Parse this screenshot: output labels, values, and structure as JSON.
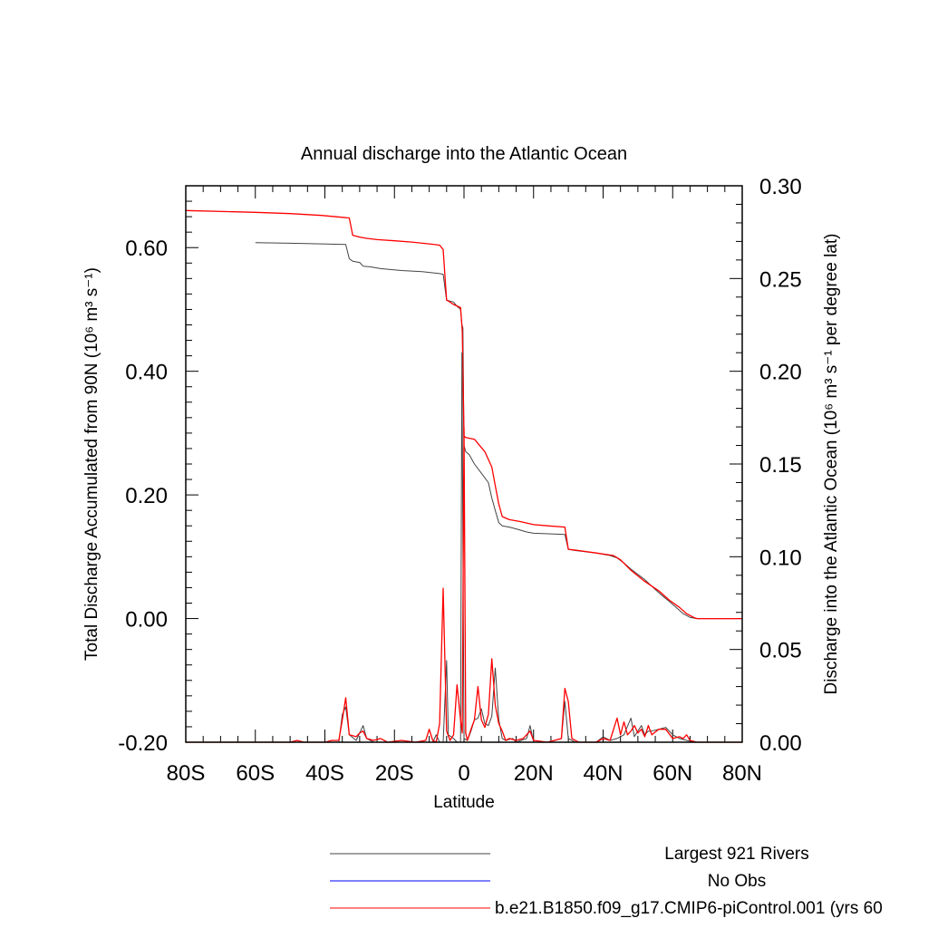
{
  "chart_data": {
    "type": "line",
    "title": "Annual discharge into the Atlantic Ocean",
    "xlabel": "Latitude",
    "ylabel_left": "Total Discharge Accumulated from 90N (10⁶ m³ s⁻¹)",
    "ylabel_right": "Discharge into the Atlantic Ocean (10⁶ m³ s⁻¹ per degree lat)",
    "xlim": [
      -80,
      80
    ],
    "ylim_left": [
      -0.2,
      0.7
    ],
    "ylim_right": [
      0.0,
      0.3
    ],
    "x_ticks": [
      {
        "value": -80,
        "label": "80S"
      },
      {
        "value": -60,
        "label": "60S"
      },
      {
        "value": -40,
        "label": "40S"
      },
      {
        "value": -20,
        "label": "20S"
      },
      {
        "value": 0,
        "label": "0"
      },
      {
        "value": 20,
        "label": "20N"
      },
      {
        "value": 40,
        "label": "40N"
      },
      {
        "value": 60,
        "label": "60N"
      },
      {
        "value": 80,
        "label": "80N"
      }
    ],
    "y_ticks_left": [
      {
        "value": -0.2,
        "label": "-0.20"
      },
      {
        "value": 0.0,
        "label": "0.00"
      },
      {
        "value": 0.2,
        "label": "0.20"
      },
      {
        "value": 0.4,
        "label": "0.40"
      },
      {
        "value": 0.6,
        "label": "0.60"
      }
    ],
    "y_ticks_right": [
      {
        "value": 0.0,
        "label": "0.00"
      },
      {
        "value": 0.05,
        "label": "0.05"
      },
      {
        "value": 0.1,
        "label": "0.10"
      },
      {
        "value": 0.15,
        "label": "0.15"
      },
      {
        "value": 0.2,
        "label": "0.20"
      },
      {
        "value": 0.25,
        "label": "0.25"
      },
      {
        "value": 0.3,
        "label": "0.30"
      }
    ],
    "series": [
      {
        "name": "Largest 921 Rivers",
        "color": "#444444",
        "axis": "left",
        "points": [
          [
            -60,
            0.608
          ],
          [
            -50,
            0.607
          ],
          [
            -41,
            0.606
          ],
          [
            -34,
            0.605
          ],
          [
            -33,
            0.582
          ],
          [
            -32,
            0.578
          ],
          [
            -30,
            0.576
          ],
          [
            -29,
            0.57
          ],
          [
            -27,
            0.569
          ],
          [
            -24,
            0.566
          ],
          [
            -18,
            0.563
          ],
          [
            -12,
            0.561
          ],
          [
            -7,
            0.558
          ],
          [
            -6,
            0.557
          ],
          [
            -5,
            0.515
          ],
          [
            -3,
            0.512
          ],
          [
            -2,
            0.505
          ],
          [
            -1,
            0.5
          ],
          [
            -0.6,
            0.475
          ],
          [
            -0.3,
            0.47
          ],
          [
            0,
            0.28
          ],
          [
            0.5,
            0.27
          ],
          [
            1.5,
            0.265
          ],
          [
            3,
            0.25
          ],
          [
            5,
            0.235
          ],
          [
            7,
            0.22
          ],
          [
            8,
            0.195
          ],
          [
            9,
            0.175
          ],
          [
            10,
            0.155
          ],
          [
            11,
            0.15
          ],
          [
            13,
            0.148
          ],
          [
            15,
            0.145
          ],
          [
            18,
            0.14
          ],
          [
            20,
            0.138
          ],
          [
            25,
            0.137
          ],
          [
            29,
            0.136
          ],
          [
            30,
            0.112
          ],
          [
            32,
            0.11
          ],
          [
            38,
            0.106
          ],
          [
            42,
            0.102
          ],
          [
            44,
            0.098
          ],
          [
            46,
            0.09
          ],
          [
            48,
            0.08
          ],
          [
            52,
            0.063
          ],
          [
            55,
            0.047
          ],
          [
            57,
            0.037
          ],
          [
            59,
            0.028
          ],
          [
            61,
            0.018
          ],
          [
            63,
            0.008
          ],
          [
            65,
            0.002
          ],
          [
            67,
            0.0
          ],
          [
            80,
            0.0
          ]
        ]
      },
      {
        "name": "No Obs",
        "color": "#0000ff",
        "axis": "left",
        "points": []
      },
      {
        "name": "b.e21.B1850.f09_g17.CMIP6-piControl.001 (yrs 60",
        "color": "#ff0000",
        "axis": "left",
        "points": [
          [
            -80,
            0.66
          ],
          [
            -60,
            0.657
          ],
          [
            -50,
            0.655
          ],
          [
            -41,
            0.652
          ],
          [
            -33,
            0.648
          ],
          [
            -32,
            0.62
          ],
          [
            -30,
            0.617
          ],
          [
            -28,
            0.615
          ],
          [
            -25,
            0.613
          ],
          [
            -20,
            0.611
          ],
          [
            -15,
            0.609
          ],
          [
            -10,
            0.606
          ],
          [
            -7,
            0.604
          ],
          [
            -6,
            0.597
          ],
          [
            -5,
            0.515
          ],
          [
            -4,
            0.512
          ],
          [
            -3,
            0.508
          ],
          [
            -1,
            0.503
          ],
          [
            -0.5,
            0.465
          ],
          [
            0,
            0.295
          ],
          [
            0.5,
            0.293
          ],
          [
            3,
            0.29
          ],
          [
            6,
            0.27
          ],
          [
            8,
            0.245
          ],
          [
            9,
            0.215
          ],
          [
            10,
            0.185
          ],
          [
            11,
            0.165
          ],
          [
            13,
            0.16
          ],
          [
            16,
            0.157
          ],
          [
            20,
            0.152
          ],
          [
            24,
            0.15
          ],
          [
            29,
            0.148
          ],
          [
            30,
            0.112
          ],
          [
            33,
            0.11
          ],
          [
            38,
            0.106
          ],
          [
            43,
            0.102
          ],
          [
            45,
            0.095
          ],
          [
            48,
            0.078
          ],
          [
            52,
            0.06
          ],
          [
            56,
            0.045
          ],
          [
            59,
            0.03
          ],
          [
            62,
            0.018
          ],
          [
            64,
            0.008
          ],
          [
            66,
            0.002
          ],
          [
            67,
            0.0
          ],
          [
            80,
            0.0
          ]
        ]
      },
      {
        "name": "Largest 921 Rivers (per degree lat)",
        "color": "#444444",
        "axis": "right",
        "points": [
          [
            -80,
            0.0
          ],
          [
            -36,
            0.0
          ],
          [
            -35,
            0.015
          ],
          [
            -34,
            0.019
          ],
          [
            -33,
            0.004
          ],
          [
            -31,
            0.001
          ],
          [
            -29,
            0.009
          ],
          [
            -28,
            0.002
          ],
          [
            -26,
            0.0
          ],
          [
            -9,
            0.0
          ],
          [
            -8,
            0.004
          ],
          [
            -7,
            0.0
          ],
          [
            -6,
            0.0
          ],
          [
            -5,
            0.044
          ],
          [
            -4.5,
            0.004
          ],
          [
            -3,
            0.002
          ],
          [
            -2,
            0.0
          ],
          [
            -1,
            0.0
          ],
          [
            -0.6,
            0.21
          ],
          [
            0,
            0.002
          ],
          [
            1,
            0.001
          ],
          [
            2,
            0.006
          ],
          [
            3,
            0.012
          ],
          [
            4,
            0.013
          ],
          [
            5,
            0.018
          ],
          [
            6,
            0.01
          ],
          [
            7,
            0.009
          ],
          [
            8,
            0.014
          ],
          [
            9,
            0.04
          ],
          [
            10,
            0.012
          ],
          [
            11,
            0.002
          ],
          [
            12,
            0.001
          ],
          [
            14,
            0.002
          ],
          [
            15,
            0.0
          ],
          [
            18,
            0.002
          ],
          [
            19,
            0.009
          ],
          [
            20,
            0.0
          ],
          [
            24,
            0.0
          ],
          [
            26,
            0.001
          ],
          [
            28,
            0.002
          ],
          [
            29,
            0.022
          ],
          [
            30,
            0.002
          ],
          [
            32,
            0.0
          ],
          [
            38,
            0.0
          ],
          [
            40,
            0.003
          ],
          [
            42,
            0.001
          ],
          [
            44,
            0.002
          ],
          [
            46,
            0.004
          ],
          [
            48,
            0.013
          ],
          [
            49,
            0.003
          ],
          [
            50,
            0.006
          ],
          [
            51,
            0.009
          ],
          [
            52,
            0.004
          ],
          [
            53,
            0.006
          ],
          [
            54,
            0.006
          ],
          [
            56,
            0.007
          ],
          [
            58,
            0.008
          ],
          [
            60,
            0.004
          ],
          [
            62,
            0.002
          ],
          [
            64,
            0.001
          ],
          [
            66,
            0.0
          ],
          [
            80,
            0.0
          ]
        ]
      },
      {
        "name": "b.e21.B1850.f09_g17.CMIP6-piControl.001 (per degree lat)",
        "color": "#ff0000",
        "axis": "right",
        "points": [
          [
            -80,
            0.0
          ],
          [
            -50,
            0.0
          ],
          [
            -48,
            0.001
          ],
          [
            -46,
            0.0
          ],
          [
            -40,
            0.0
          ],
          [
            -38,
            0.001
          ],
          [
            -36,
            0.001
          ],
          [
            -35,
            0.012
          ],
          [
            -34,
            0.024
          ],
          [
            -33,
            0.004
          ],
          [
            -31,
            0.003
          ],
          [
            -30,
            0.005
          ],
          [
            -29,
            0.006
          ],
          [
            -28,
            0.002
          ],
          [
            -26,
            0.001
          ],
          [
            -24,
            0.002
          ],
          [
            -22,
            0.0
          ],
          [
            -18,
            0.001
          ],
          [
            -14,
            0.0
          ],
          [
            -11,
            0.001
          ],
          [
            -10,
            0.007
          ],
          [
            -9,
            0.001
          ],
          [
            -8,
            0.0
          ],
          [
            -7,
            0.01
          ],
          [
            -6,
            0.083
          ],
          [
            -5,
            0.006
          ],
          [
            -4,
            0.001
          ],
          [
            -3,
            0.004
          ],
          [
            -2,
            0.031
          ],
          [
            -1,
            0.012
          ],
          [
            -0.5,
            0.005
          ],
          [
            0,
            0.17
          ],
          [
            0.5,
            0.005
          ],
          [
            1,
            0.001
          ],
          [
            2,
            0.007
          ],
          [
            3,
            0.012
          ],
          [
            4,
            0.03
          ],
          [
            5,
            0.012
          ],
          [
            6,
            0.008
          ],
          [
            7,
            0.015
          ],
          [
            8,
            0.045
          ],
          [
            9,
            0.02
          ],
          [
            10,
            0.01
          ],
          [
            11,
            0.006
          ],
          [
            12,
            0.001
          ],
          [
            13,
            0.002
          ],
          [
            15,
            0.001
          ],
          [
            17,
            0.002
          ],
          [
            19,
            0.006
          ],
          [
            20,
            0.001
          ],
          [
            24,
            0.0
          ],
          [
            26,
            0.001
          ],
          [
            28,
            0.002
          ],
          [
            29,
            0.029
          ],
          [
            30,
            0.022
          ],
          [
            31,
            0.002
          ],
          [
            33,
            0.0
          ],
          [
            38,
            0.0
          ],
          [
            40,
            0.002
          ],
          [
            42,
            0.001
          ],
          [
            44,
            0.013
          ],
          [
            45,
            0.004
          ],
          [
            46,
            0.011
          ],
          [
            47,
            0.004
          ],
          [
            48,
            0.006
          ],
          [
            49,
            0.009
          ],
          [
            50,
            0.005
          ],
          [
            51,
            0.007
          ],
          [
            52,
            0.003
          ],
          [
            53,
            0.009
          ],
          [
            54,
            0.004
          ],
          [
            56,
            0.007
          ],
          [
            58,
            0.007
          ],
          [
            60,
            0.002
          ],
          [
            62,
            0.003
          ],
          [
            63,
            0.002
          ],
          [
            64,
            0.004
          ],
          [
            65,
            0.001
          ],
          [
            67,
            0.0
          ],
          [
            80,
            0.0
          ]
        ]
      }
    ],
    "legend": {
      "placement": "bottom",
      "entries": [
        {
          "label": "Largest 921 Rivers",
          "color": "#444444"
        },
        {
          "label": "No Obs",
          "color": "#0000ff"
        },
        {
          "label": "b.e21.B1850.f09_g17.CMIP6-piControl.001 (yrs 60",
          "color": "#ff0000"
        }
      ]
    }
  }
}
